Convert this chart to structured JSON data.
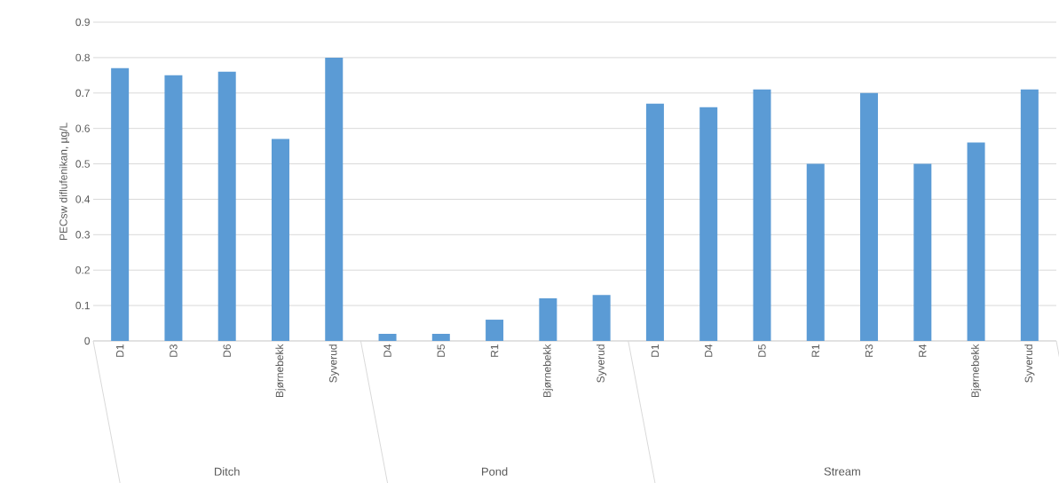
{
  "chart_data": {
    "type": "bar",
    "ylabel": "PECsw diflufenikan, µg/L",
    "categories": [
      "D1",
      "D3",
      "D6",
      "Bjørnebekk",
      "Syverud",
      "D4",
      "D5",
      "R1",
      "Bjørnebekk",
      "Syverud",
      "D1",
      "D4",
      "D5",
      "R1",
      "R3",
      "R4",
      "Bjørnebekk",
      "Syverud"
    ],
    "values": [
      0.77,
      0.75,
      0.76,
      0.57,
      0.8,
      0.02,
      0.02,
      0.06,
      0.12,
      0.13,
      0.67,
      0.66,
      0.71,
      0.5,
      0.7,
      0.5,
      0.56,
      0.71
    ],
    "color": "#5b9bd5",
    "ylim": [
      0,
      0.9
    ],
    "yticks": [
      0,
      0.1,
      0.2,
      0.3,
      0.4,
      0.5,
      0.6,
      0.7,
      0.8,
      0.9
    ],
    "grid": "y",
    "annotations": [
      "Ditch",
      "Pond",
      "Stream"
    ]
  }
}
